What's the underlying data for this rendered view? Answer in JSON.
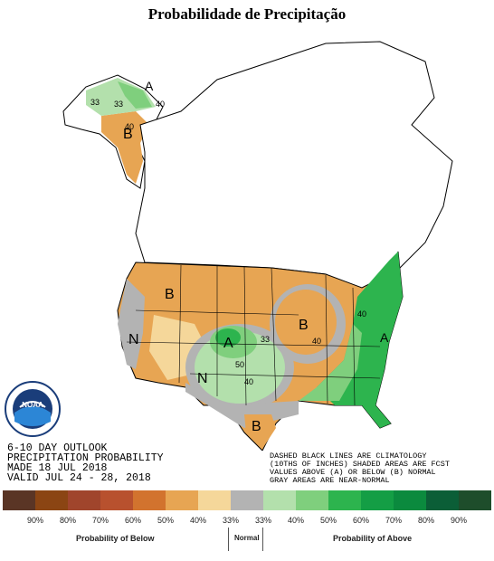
{
  "title": "Probabilidade de Precipitação",
  "outlook": {
    "line1": "6-10 DAY OUTLOOK",
    "line2": "PRECIPITATION PROBABILITY",
    "line3": "MADE  18 JUL 2018",
    "line4": "VALID  JUL 24 - 28, 2018"
  },
  "note": {
    "line1": "DASHED BLACK LINES ARE CLIMATOLOGY",
    "line2": "(10THS OF INCHES) SHADED AREAS ARE FCST",
    "line3": "VALUES ABOVE (A) OR BELOW (B) NORMAL",
    "line4": "GRAY AREAS ARE NEAR-NORMAL"
  },
  "map_labels": {
    "B_alaska": "B",
    "A_alaska": "A",
    "B_west": "B",
    "N_cal": "N",
    "A_plains": "A",
    "N_south": "N",
    "B_midwest": "B",
    "B_texas": "B",
    "A_east": "A",
    "c33a": "33",
    "c33b": "33",
    "c40a": "40",
    "c40b": "40",
    "c50": "50",
    "c40c": "40",
    "c40d": "40",
    "c33c": "33",
    "c40e": "40"
  },
  "legend": {
    "colors": [
      "#5a3525",
      "#8b4513",
      "#a0452c",
      "#b8512e",
      "#d2732e",
      "#e7a553",
      "#f5d79a",
      "#b3b3b3",
      "#b3e0ac",
      "#7fcf7d",
      "#2db44e",
      "#149e45",
      "#0b8a3e",
      "#0b5e37",
      "#1e4d2b"
    ],
    "labels": [
      "90%",
      "80%",
      "70%",
      "60%",
      "50%",
      "40%",
      "33%",
      "33%",
      "40%",
      "50%",
      "60%",
      "70%",
      "80%",
      "90%"
    ],
    "below_caption": "Probability of Below",
    "normal_caption": "Normal",
    "above_caption": "Probability of Above"
  },
  "logo": {
    "text": "NOAA"
  }
}
